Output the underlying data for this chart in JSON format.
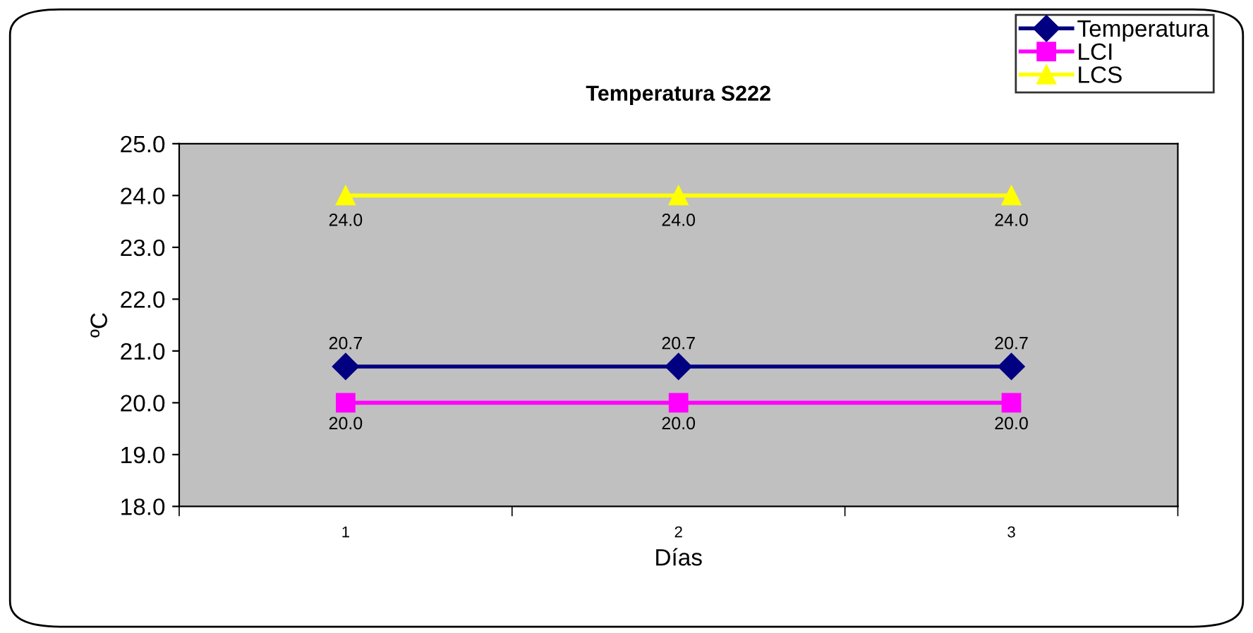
{
  "chart_data": {
    "type": "line",
    "title": "Temperatura S222",
    "xlabel": "Días",
    "ylabel": "ºC",
    "categories": [
      "1",
      "2",
      "3"
    ],
    "series": [
      {
        "name": "Temperatura",
        "color": "#000080",
        "values": [
          20.7,
          20.7,
          20.7
        ],
        "marker": "diamond",
        "value_labels": [
          "20.7",
          "20.7",
          "20.7"
        ]
      },
      {
        "name": "LCI",
        "color": "#ff00ff",
        "values": [
          20.0,
          20.0,
          20.0
        ],
        "marker": "square",
        "value_labels": [
          "20.0",
          "20.0",
          "20.0"
        ]
      },
      {
        "name": "LCS",
        "color": "#ffff00",
        "values": [
          24.0,
          24.0,
          24.0
        ],
        "marker": "triangle",
        "value_labels": [
          "24.0",
          "24.0",
          "24.0"
        ]
      }
    ],
    "ylim": [
      18.0,
      25.0
    ],
    "yticks": [
      {
        "value": 18,
        "label": "18.0"
      },
      {
        "value": 19,
        "label": "19.0"
      },
      {
        "value": 20,
        "label": "20.0"
      },
      {
        "value": 21,
        "label": "21.0"
      },
      {
        "value": 22,
        "label": "22.0"
      },
      {
        "value": 23,
        "label": "23.0"
      },
      {
        "value": 24,
        "label": "24.0"
      },
      {
        "value": 25,
        "label": "25.0"
      }
    ],
    "grid": false,
    "legend": "top right",
    "line_style": "solid"
  }
}
